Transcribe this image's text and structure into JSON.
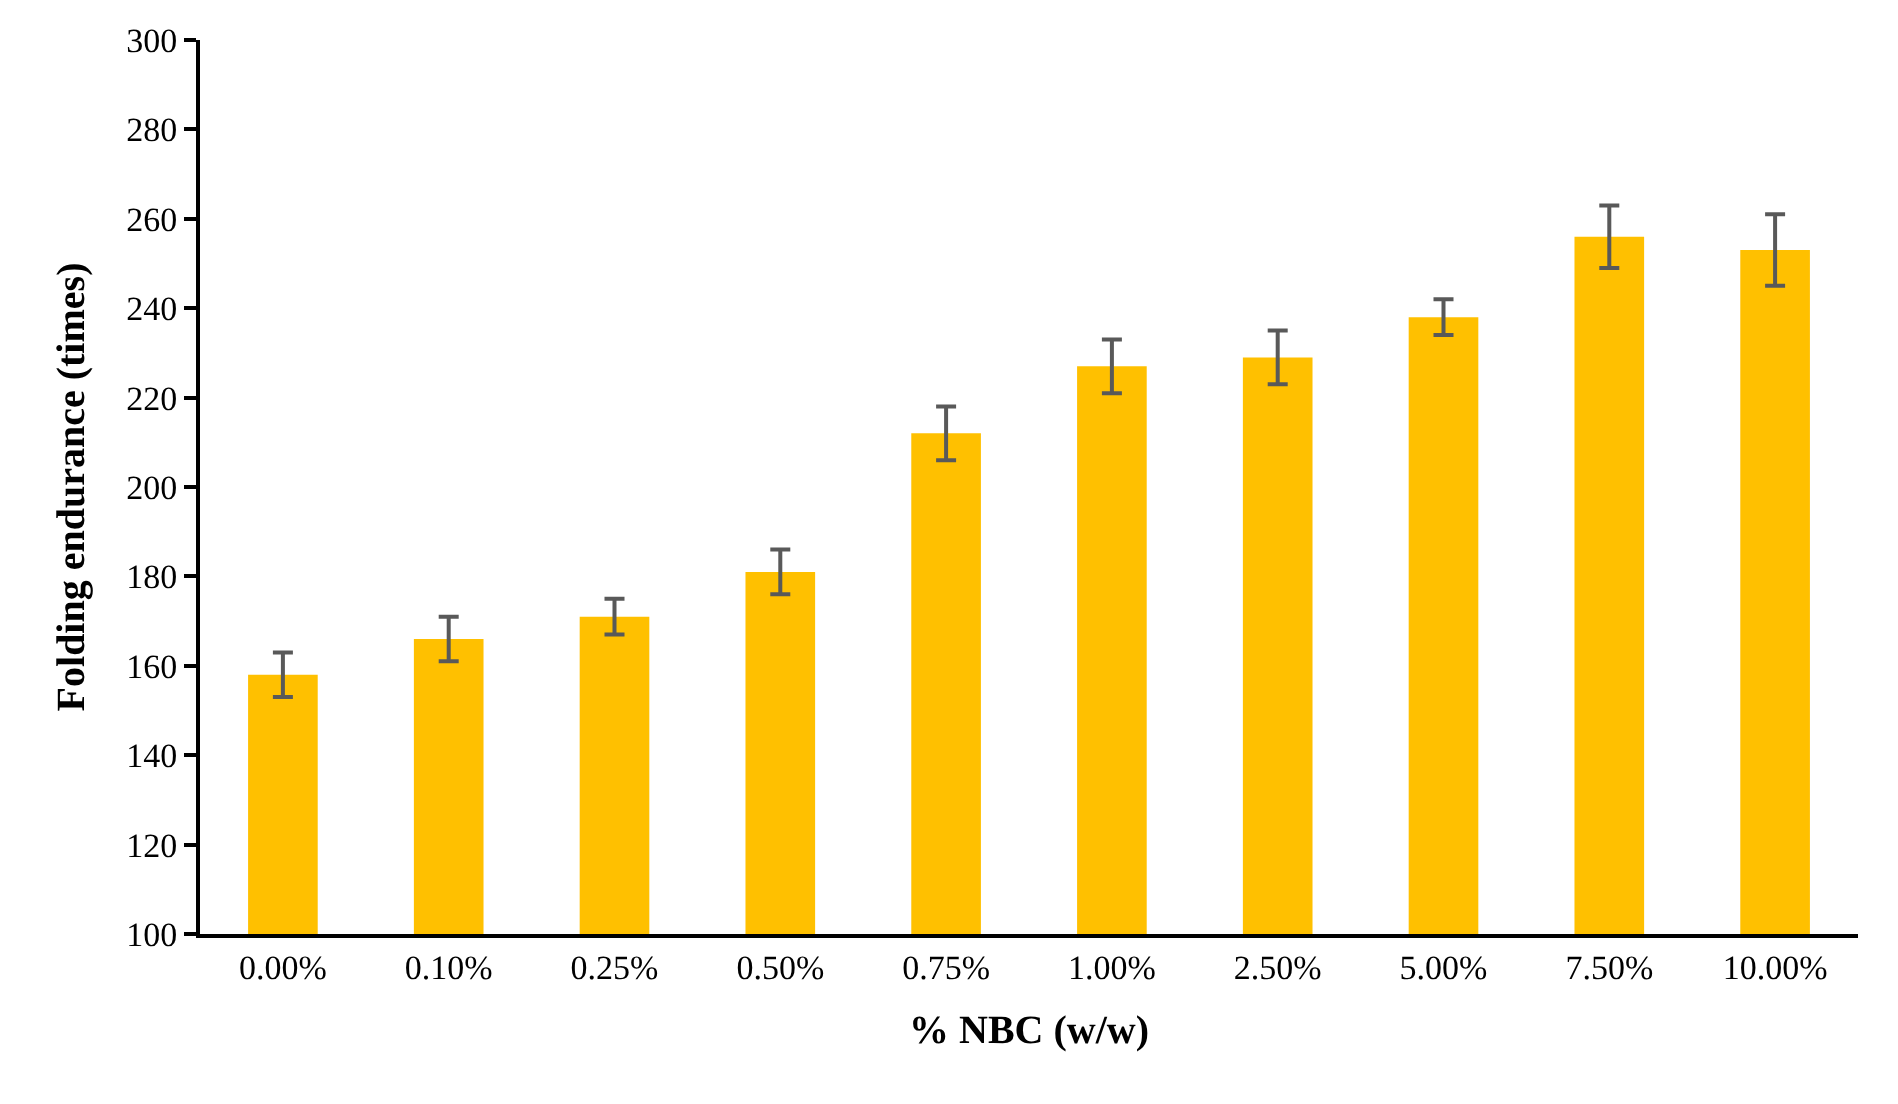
{
  "chart_data": {
    "type": "bar",
    "xlabel": "% NBC (w/w)",
    "ylabel": "Folding endurance (times)",
    "categories": [
      "0.00%",
      "0.10%",
      "0.25%",
      "0.50%",
      "0.75%",
      "1.00%",
      "2.50%",
      "5.00%",
      "7.50%",
      "10.00%"
    ],
    "values": [
      158,
      166,
      171,
      181,
      212,
      227,
      229,
      238,
      256,
      253
    ],
    "errors": [
      5,
      5,
      4,
      5,
      6,
      6,
      6,
      4,
      7,
      8
    ],
    "color": "#ffc000",
    "ylim": [
      100,
      300
    ],
    "yticks": [
      100,
      120,
      140,
      160,
      180,
      200,
      220,
      240,
      260,
      280,
      300
    ],
    "grid": false
  }
}
